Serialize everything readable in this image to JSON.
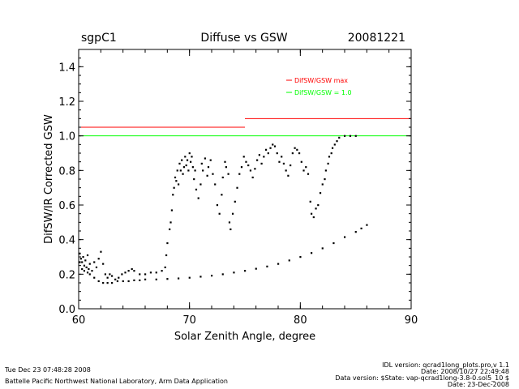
{
  "header": {
    "site": "sgpC1",
    "date": "20081221"
  },
  "chart_data": {
    "type": "scatter",
    "title": "Diffuse vs GSW",
    "xlabel": "Solar Zenith Angle, degree",
    "ylabel": "DifSW/IR Corrected GSW",
    "xlim": [
      60,
      90
    ],
    "ylim": [
      0,
      1.5
    ],
    "xticks": [
      "60",
      "70",
      "80",
      "90"
    ],
    "yticks": [
      "0.0",
      "0.2",
      "0.4",
      "0.6",
      "0.8",
      "1.0",
      "1.2",
      "1.4"
    ],
    "grid": false,
    "legend_position": "top-right",
    "legend": [
      {
        "label": "DifSW/GSW max",
        "color": "#ff0000"
      },
      {
        "label": "DifSW/GSW = 1.0",
        "color": "#00ff00"
      }
    ],
    "reference_lines": [
      {
        "name": "DifSW/GSW max",
        "color": "#ff0000",
        "segments": [
          [
            60,
            75,
            1.05
          ],
          [
            75,
            90,
            1.1
          ]
        ]
      },
      {
        "name": "DifSW/GSW = 1.0",
        "color": "#00ff00",
        "segments": [
          [
            60,
            90,
            1.0
          ]
        ]
      }
    ],
    "series": [
      {
        "color": "#000000",
        "values": [
          [
            60.1,
            0.32
          ],
          [
            60.2,
            0.29
          ],
          [
            60.3,
            0.27
          ],
          [
            60.4,
            0.3
          ],
          [
            60.5,
            0.25
          ],
          [
            60.6,
            0.28
          ],
          [
            60.7,
            0.24
          ],
          [
            60.8,
            0.31
          ],
          [
            60.9,
            0.23
          ],
          [
            61.0,
            0.26
          ],
          [
            61.2,
            0.22
          ],
          [
            61.4,
            0.27
          ],
          [
            61.6,
            0.24
          ],
          [
            61.8,
            0.29
          ],
          [
            62.0,
            0.33
          ],
          [
            62.2,
            0.26
          ],
          [
            62.4,
            0.2
          ],
          [
            62.6,
            0.18
          ],
          [
            62.8,
            0.2
          ],
          [
            63.0,
            0.19
          ],
          [
            63.3,
            0.17
          ],
          [
            63.6,
            0.18
          ],
          [
            63.9,
            0.2
          ],
          [
            64.2,
            0.21
          ],
          [
            64.5,
            0.22
          ],
          [
            64.8,
            0.23
          ],
          [
            65.0,
            0.22
          ],
          [
            65.5,
            0.2
          ],
          [
            66.0,
            0.2
          ],
          [
            66.5,
            0.21
          ],
          [
            67.0,
            0.21
          ],
          [
            67.5,
            0.22
          ],
          [
            67.8,
            0.24
          ],
          [
            67.9,
            0.31
          ],
          [
            68.0,
            0.38
          ],
          [
            68.2,
            0.46
          ],
          [
            68.3,
            0.5
          ],
          [
            68.4,
            0.57
          ],
          [
            68.5,
            0.66
          ],
          [
            68.6,
            0.7
          ],
          [
            68.7,
            0.76
          ],
          [
            68.8,
            0.74
          ],
          [
            68.9,
            0.8
          ],
          [
            69.0,
            0.72
          ],
          [
            69.1,
            0.84
          ],
          [
            69.2,
            0.8
          ],
          [
            69.3,
            0.86
          ],
          [
            69.4,
            0.78
          ],
          [
            69.5,
            0.82
          ],
          [
            69.6,
            0.88
          ],
          [
            69.7,
            0.83
          ],
          [
            69.8,
            0.86
          ],
          [
            69.9,
            0.8
          ],
          [
            70.0,
            0.9
          ],
          [
            70.1,
            0.85
          ],
          [
            70.2,
            0.88
          ],
          [
            70.3,
            0.82
          ],
          [
            70.4,
            0.75
          ],
          [
            70.5,
            0.8
          ],
          [
            70.6,
            0.69
          ],
          [
            70.8,
            0.64
          ],
          [
            71.0,
            0.72
          ],
          [
            71.1,
            0.84
          ],
          [
            71.2,
            0.8
          ],
          [
            71.4,
            0.87
          ],
          [
            71.6,
            0.77
          ],
          [
            71.7,
            0.82
          ],
          [
            71.9,
            0.86
          ],
          [
            72.1,
            0.78
          ],
          [
            72.3,
            0.72
          ],
          [
            72.5,
            0.6
          ],
          [
            72.7,
            0.55
          ],
          [
            72.9,
            0.66
          ],
          [
            73.0,
            0.76
          ],
          [
            73.2,
            0.85
          ],
          [
            73.3,
            0.82
          ],
          [
            73.5,
            0.78
          ],
          [
            73.6,
            0.5
          ],
          [
            73.7,
            0.46
          ],
          [
            73.9,
            0.55
          ],
          [
            74.1,
            0.62
          ],
          [
            74.3,
            0.7
          ],
          [
            74.5,
            0.78
          ],
          [
            74.7,
            0.82
          ],
          [
            74.9,
            0.88
          ],
          [
            75.1,
            0.85
          ],
          [
            75.3,
            0.83
          ],
          [
            75.5,
            0.8
          ],
          [
            75.7,
            0.76
          ],
          [
            75.9,
            0.81
          ],
          [
            76.1,
            0.86
          ],
          [
            76.3,
            0.89
          ],
          [
            76.5,
            0.84
          ],
          [
            76.7,
            0.88
          ],
          [
            76.9,
            0.92
          ],
          [
            77.1,
            0.9
          ],
          [
            77.3,
            0.93
          ],
          [
            77.5,
            0.95
          ],
          [
            77.7,
            0.94
          ],
          [
            77.9,
            0.9
          ],
          [
            78.1,
            0.85
          ],
          [
            78.3,
            0.88
          ],
          [
            78.5,
            0.84
          ],
          [
            78.7,
            0.8
          ],
          [
            78.9,
            0.77
          ],
          [
            79.1,
            0.83
          ],
          [
            79.3,
            0.9
          ],
          [
            79.5,
            0.93
          ],
          [
            79.7,
            0.92
          ],
          [
            79.9,
            0.9
          ],
          [
            80.1,
            0.85
          ],
          [
            80.3,
            0.8
          ],
          [
            80.5,
            0.82
          ],
          [
            80.7,
            0.78
          ],
          [
            80.9,
            0.62
          ],
          [
            81.0,
            0.55
          ],
          [
            81.2,
            0.53
          ],
          [
            81.4,
            0.58
          ],
          [
            81.6,
            0.6
          ],
          [
            81.8,
            0.67
          ],
          [
            82.0,
            0.72
          ],
          [
            82.2,
            0.75
          ],
          [
            82.3,
            0.8
          ],
          [
            82.5,
            0.84
          ],
          [
            82.6,
            0.88
          ],
          [
            82.8,
            0.9
          ],
          [
            82.9,
            0.93
          ],
          [
            83.1,
            0.95
          ],
          [
            83.3,
            0.97
          ],
          [
            83.5,
            0.99
          ],
          [
            84.0,
            1.0
          ],
          [
            84.5,
            1.0
          ],
          [
            85.0,
            1.0
          ],
          [
            60.1,
            0.27
          ],
          [
            60.3,
            0.23
          ],
          [
            60.5,
            0.22
          ],
          [
            60.8,
            0.21
          ],
          [
            61.0,
            0.2
          ],
          [
            61.4,
            0.18
          ],
          [
            61.8,
            0.16
          ],
          [
            62.2,
            0.15
          ],
          [
            62.6,
            0.15
          ],
          [
            63.0,
            0.15
          ],
          [
            63.5,
            0.16
          ],
          [
            64.0,
            0.16
          ],
          [
            64.5,
            0.16
          ],
          [
            65.0,
            0.165
          ],
          [
            65.5,
            0.165
          ],
          [
            66.0,
            0.17
          ],
          [
            67.0,
            0.17
          ],
          [
            68.0,
            0.173
          ],
          [
            69.0,
            0.176
          ],
          [
            70.0,
            0.18
          ],
          [
            71.0,
            0.186
          ],
          [
            72.0,
            0.192
          ],
          [
            73.0,
            0.2
          ],
          [
            74.0,
            0.21
          ],
          [
            75.0,
            0.22
          ],
          [
            76.0,
            0.232
          ],
          [
            77.0,
            0.245
          ],
          [
            78.0,
            0.26
          ],
          [
            79.0,
            0.28
          ],
          [
            80.0,
            0.3
          ],
          [
            81.0,
            0.323
          ],
          [
            82.0,
            0.35
          ],
          [
            83.0,
            0.38
          ],
          [
            84.0,
            0.415
          ],
          [
            85.0,
            0.445
          ],
          [
            85.5,
            0.465
          ],
          [
            86.0,
            0.485
          ]
        ]
      }
    ]
  },
  "footer": {
    "timestamp": "Tue Dec 23 07:48:28 2008",
    "organization": "Battelle Pacific Northwest National Laboratory, Arm Data Application",
    "idl_version": "IDL version: qcrad1long_plots.pro,v 1.1",
    "idl_date": "Date: 2008/10/27 22:49:48",
    "data_version": "Data version: $State: vap-qcrad1long-3.8-0.sol5_10 $",
    "data_date": "Date: 23-Dec-2008"
  }
}
